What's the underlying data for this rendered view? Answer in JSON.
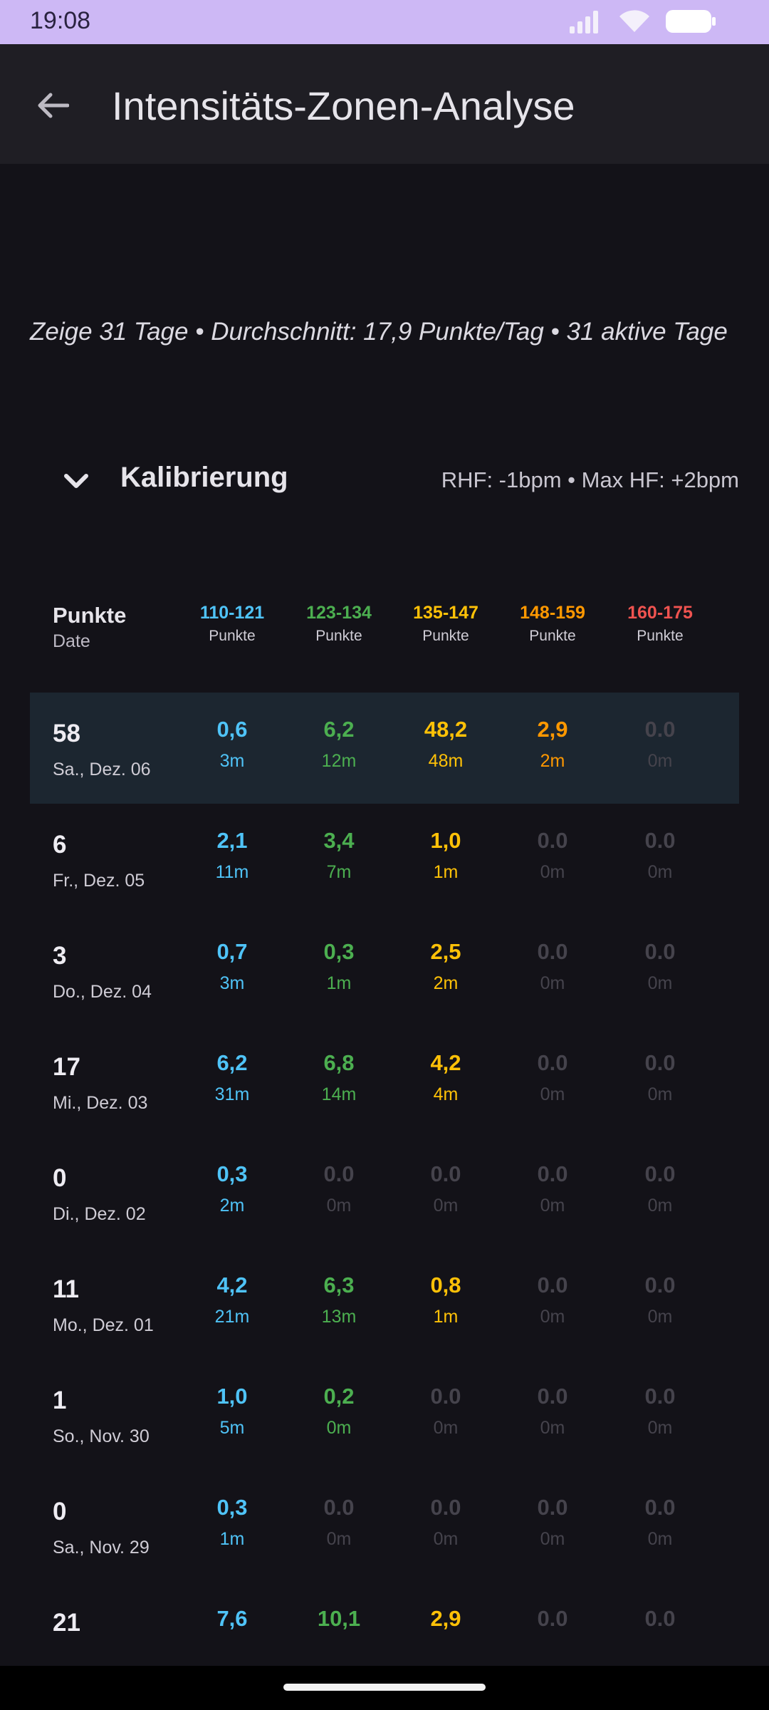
{
  "status_bar": {
    "time": "19:08"
  },
  "app_bar": {
    "title": "Intensitäts-Zonen-Analyse"
  },
  "summary": "Zeige 31 Tage • Durchschnitt: 17,9 Punkte/Tag • 31 aktive Tage",
  "calibration": {
    "title": "Kalibrierung",
    "info": "RHF: -1bpm • Max HF: +2bpm"
  },
  "table": {
    "header": {
      "main": "Punkte",
      "sub": "Date",
      "columns": [
        {
          "range": "110-121",
          "unit": "Punkte",
          "color": "#4fc3f7"
        },
        {
          "range": "123-134",
          "unit": "Punkte",
          "color": "#4caf50"
        },
        {
          "range": "135-147",
          "unit": "Punkte",
          "color": "#ffc107"
        },
        {
          "range": "148-159",
          "unit": "Punkte",
          "color": "#ff9800"
        },
        {
          "range": "160-175",
          "unit": "Punkte",
          "color": "#ef5350"
        }
      ]
    },
    "rows": [
      {
        "points": "58",
        "date": "Sa., Dez. 06",
        "highlight": true,
        "cells": [
          {
            "v": "0,6",
            "m": "3m"
          },
          {
            "v": "6,2",
            "m": "12m"
          },
          {
            "v": "48,2",
            "m": "48m"
          },
          {
            "v": "2,9",
            "m": "2m"
          },
          {
            "v": "0.0",
            "m": "0m"
          }
        ]
      },
      {
        "points": "6",
        "date": "Fr., Dez. 05",
        "cells": [
          {
            "v": "2,1",
            "m": "11m"
          },
          {
            "v": "3,4",
            "m": "7m"
          },
          {
            "v": "1,0",
            "m": "1m"
          },
          {
            "v": "0.0",
            "m": "0m"
          },
          {
            "v": "0.0",
            "m": "0m"
          }
        ]
      },
      {
        "points": "3",
        "date": "Do., Dez. 04",
        "cells": [
          {
            "v": "0,7",
            "m": "3m"
          },
          {
            "v": "0,3",
            "m": "1m"
          },
          {
            "v": "2,5",
            "m": "2m"
          },
          {
            "v": "0.0",
            "m": "0m"
          },
          {
            "v": "0.0",
            "m": "0m"
          }
        ]
      },
      {
        "points": "17",
        "date": "Mi., Dez. 03",
        "cells": [
          {
            "v": "6,2",
            "m": "31m"
          },
          {
            "v": "6,8",
            "m": "14m"
          },
          {
            "v": "4,2",
            "m": "4m"
          },
          {
            "v": "0.0",
            "m": "0m"
          },
          {
            "v": "0.0",
            "m": "0m"
          }
        ]
      },
      {
        "points": "0",
        "date": "Di., Dez. 02",
        "cells": [
          {
            "v": "0,3",
            "m": "2m"
          },
          {
            "v": "0.0",
            "m": "0m"
          },
          {
            "v": "0.0",
            "m": "0m"
          },
          {
            "v": "0.0",
            "m": "0m"
          },
          {
            "v": "0.0",
            "m": "0m"
          }
        ]
      },
      {
        "points": "11",
        "date": "Mo., Dez. 01",
        "cells": [
          {
            "v": "4,2",
            "m": "21m"
          },
          {
            "v": "6,3",
            "m": "13m"
          },
          {
            "v": "0,8",
            "m": "1m"
          },
          {
            "v": "0.0",
            "m": "0m"
          },
          {
            "v": "0.0",
            "m": "0m"
          }
        ]
      },
      {
        "points": "1",
        "date": "So., Nov. 30",
        "cells": [
          {
            "v": "1,0",
            "m": "5m"
          },
          {
            "v": "0,2",
            "m": "0m"
          },
          {
            "v": "0.0",
            "m": "0m"
          },
          {
            "v": "0.0",
            "m": "0m"
          },
          {
            "v": "0.0",
            "m": "0m"
          }
        ]
      },
      {
        "points": "0",
        "date": "Sa., Nov. 29",
        "cells": [
          {
            "v": "0,3",
            "m": "1m"
          },
          {
            "v": "0.0",
            "m": "0m"
          },
          {
            "v": "0.0",
            "m": "0m"
          },
          {
            "v": "0.0",
            "m": "0m"
          },
          {
            "v": "0.0",
            "m": "0m"
          }
        ]
      },
      {
        "points": "21",
        "date": "",
        "cells": [
          {
            "v": "7,6",
            "m": ""
          },
          {
            "v": "10,1",
            "m": ""
          },
          {
            "v": "2,9",
            "m": ""
          },
          {
            "v": "0.0",
            "m": ""
          },
          {
            "v": "0.0",
            "m": ""
          }
        ]
      }
    ]
  }
}
